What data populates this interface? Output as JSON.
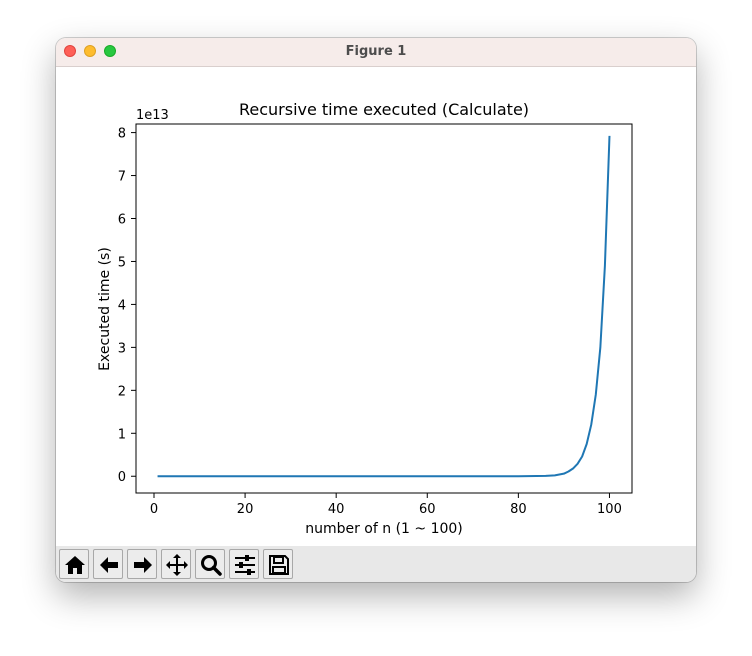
{
  "window": {
    "title": "Figure 1"
  },
  "toolbar": {
    "buttons": [
      {
        "name": "home-button",
        "icon": "home-icon"
      },
      {
        "name": "back-button",
        "icon": "arrow-left-icon"
      },
      {
        "name": "forward-button",
        "icon": "arrow-right-icon"
      },
      {
        "name": "pan-button",
        "icon": "move-icon"
      },
      {
        "name": "zoom-button",
        "icon": "magnifier-icon"
      },
      {
        "name": "configure-subplots-button",
        "icon": "sliders-icon"
      },
      {
        "name": "save-button",
        "icon": "floppy-disk-icon"
      }
    ]
  },
  "chart_data": {
    "type": "line",
    "title": "Recursive time executed (Calculate)",
    "xlabel": "number of n (1 ~ 100)",
    "ylabel": "Executed time (s)",
    "y_offset_label": "1e13",
    "xlim": [
      -3.95,
      104.95
    ],
    "ylim": [
      -0.39,
      8.2
    ],
    "x_ticks": [
      0,
      20,
      40,
      60,
      80,
      100
    ],
    "x_tick_labels": [
      "0",
      "20",
      "40",
      "60",
      "80",
      "100"
    ],
    "y_ticks": [
      0,
      1,
      2,
      3,
      4,
      5,
      6,
      7,
      8
    ],
    "y_tick_labels": [
      "0",
      "1",
      "2",
      "3",
      "4",
      "5",
      "6",
      "7",
      "8"
    ],
    "grid": false,
    "line_color": "#1f77b4",
    "series": [
      {
        "x": [
          1,
          70,
          80,
          84,
          86,
          88,
          89,
          90,
          91,
          92,
          93,
          94,
          95,
          96,
          97,
          98,
          99,
          100
        ],
        "values": [
          0.0,
          0.0,
          0.0,
          0.005,
          0.01,
          0.02,
          0.04,
          0.06,
          0.11,
          0.18,
          0.29,
          0.46,
          0.75,
          1.2,
          1.9,
          3.0,
          4.9,
          7.9
        ]
      }
    ]
  }
}
